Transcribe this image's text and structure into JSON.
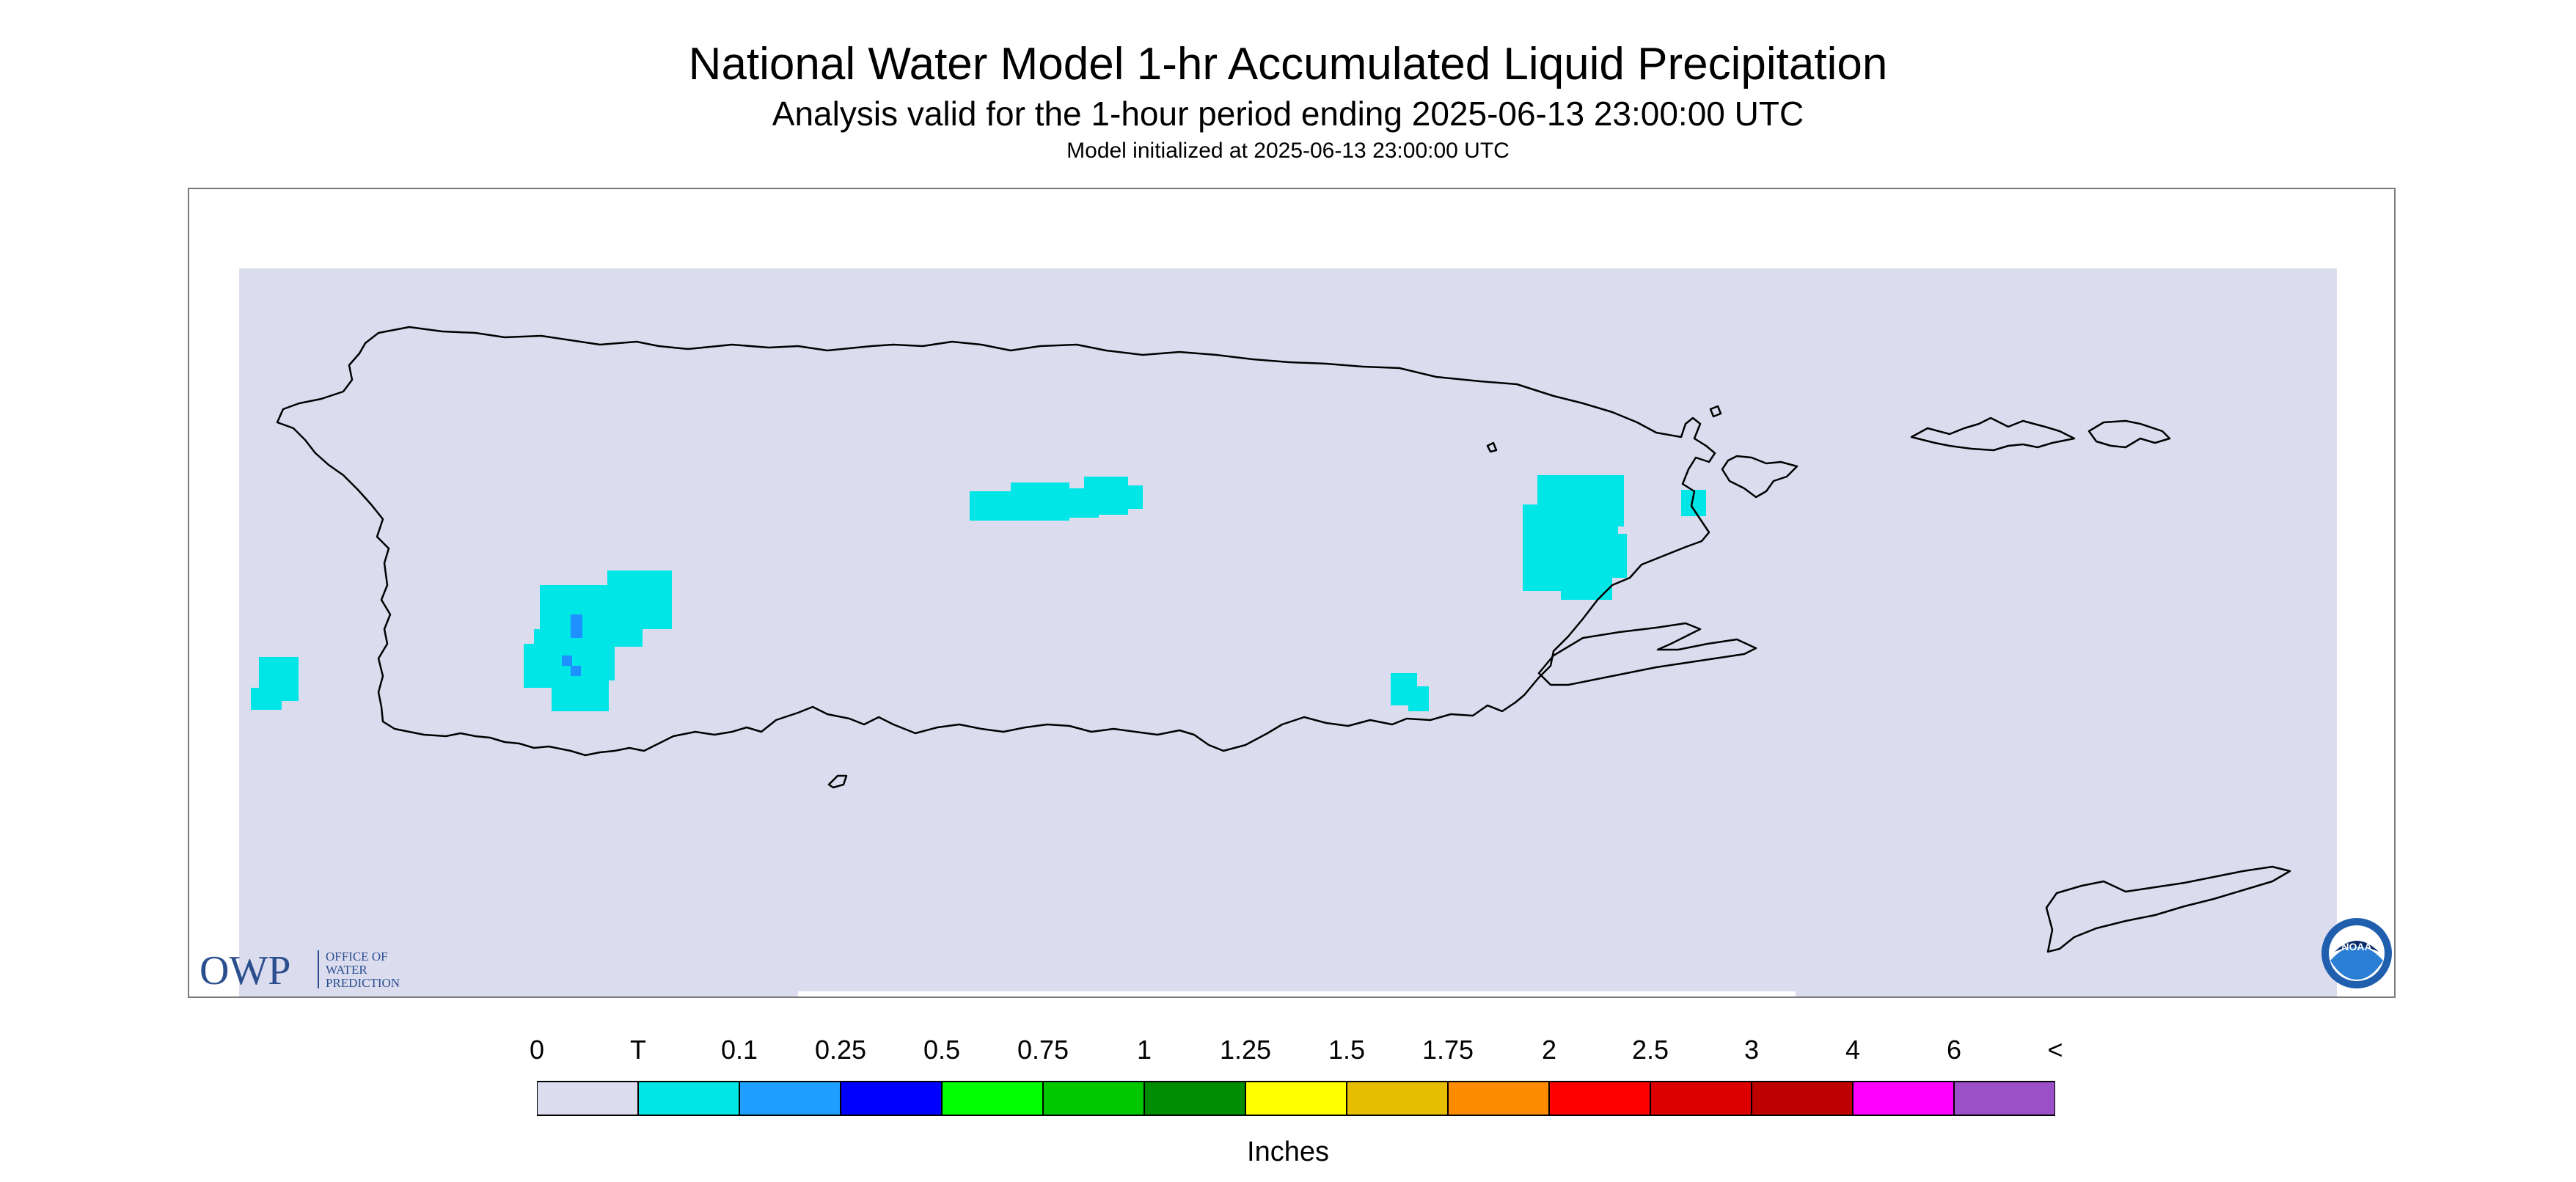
{
  "header": {
    "title": "National Water Model 1-hr Accumulated Liquid Precipitation",
    "subtitle": "Analysis valid for the 1-hour period ending 2025-06-13 23:00:00 UTC",
    "init": "Model initialized at 2025-06-13 23:00:00 UTC"
  },
  "map": {
    "background_color": "#dcdcef",
    "coastline_color": "#000000",
    "regions_shown": [
      "Puerto Rico",
      "Vieques",
      "Culebra",
      "U.S. Virgin Islands",
      "St. Croix"
    ],
    "precip_color_trace": "#00e5e5",
    "precip_color_low": "#1e90ff"
  },
  "logos": {
    "owp_letters": "OWP",
    "owp_line1": "OFFICE OF",
    "owp_line2": "WATER",
    "owp_line3": "PREDICTION",
    "noaa_text": "NOAA"
  },
  "legend": {
    "units": "Inches",
    "labels": [
      "0",
      "T",
      "0.1",
      "0.25",
      "0.5",
      "0.75",
      "1",
      "1.25",
      "1.5",
      "1.75",
      "2",
      "2.5",
      "3",
      "4",
      "6",
      "<"
    ],
    "colors": [
      "#dcdcef",
      "#00e5e5",
      "#1e9fff",
      "#0000ff",
      "#00ff00",
      "#00c800",
      "#008c00",
      "#ffff00",
      "#e6be00",
      "#ff8c00",
      "#ff0000",
      "#dc0000",
      "#be0000",
      "#ff00ff",
      "#9b50c8"
    ]
  }
}
